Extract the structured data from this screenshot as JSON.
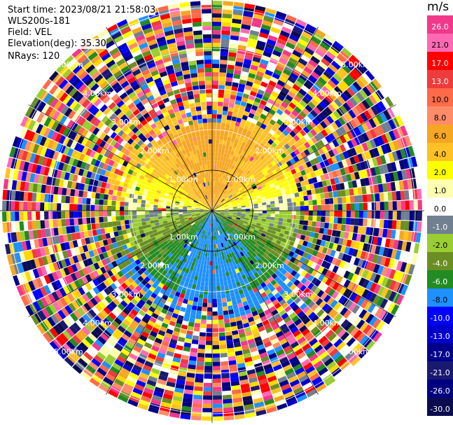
{
  "header": {
    "start_time": "Start time: 2023/08/21 21:58:03",
    "instrument": "WLS200s-181",
    "field": "Field: VEL",
    "elevation": "Elevation(deg): 35.30",
    "nrays": "NRays: 120"
  },
  "colorbar": {
    "unit": "m/s",
    "ticks": [
      "26.0",
      "21.0",
      "17.0",
      "13.0",
      "10.0",
      "8.0",
      "6.0",
      "4.0",
      "2.0",
      "1.0",
      "0.0",
      "-1.0",
      "-2.0",
      "-4.0",
      "-6.0",
      "-8.0",
      "-10.0",
      "-13.0",
      "-17.0",
      "-21.0",
      "-26.0",
      "-30.0"
    ],
    "colors": [
      "#f2388a",
      "#ff69b4",
      "#ff0000",
      "#ee3b3b",
      "#ff6a4a",
      "#ff8c69",
      "#f5a623",
      "#ffc125",
      "#ffff00",
      "#ffffb0",
      "#ffffff",
      "#708090",
      "#9acd32",
      "#6b8e23",
      "#228b22",
      "#1e90ff",
      "#0000ff",
      "#0000cd",
      "#00008b",
      "#191970",
      "#000080",
      "#0b0b4f"
    ]
  },
  "chart_data": {
    "type": "heatmap",
    "title": "",
    "range_rings_km": [
      1.0,
      2.0,
      3.0,
      4.0,
      5.0
    ],
    "ring_labels": [
      "1.00km",
      "2.00km",
      "3.00km",
      "4.00km",
      "5.00km"
    ],
    "nrays": 120,
    "note_values": "radial velocity (m/s): positive near center north side, negative south side, noisy beyond ~2 km"
  }
}
